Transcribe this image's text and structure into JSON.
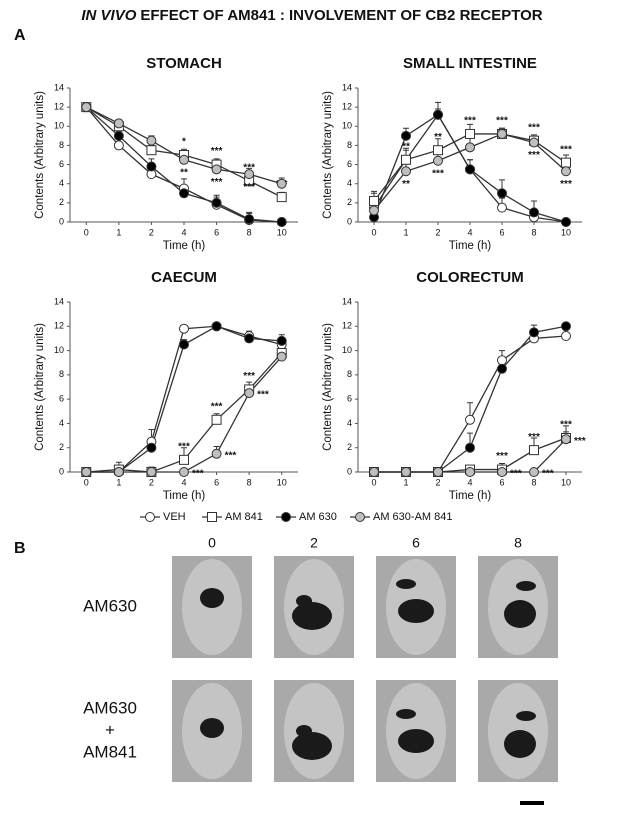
{
  "figure_title": {
    "italic": "IN VIVO",
    "rest": "EFFECT OF AM841 : INVOLVEMENT OF CB2 RECEPTOR"
  },
  "panel_labels": [
    "A",
    "B"
  ],
  "chart_data": [
    {
      "type": "line",
      "title": "STOMACH",
      "xlabel": "Time (h)",
      "ylabel": "Contents (Arbitrary units)",
      "categories": [
        "0",
        "1",
        "2",
        "4",
        "6",
        "8",
        "10"
      ],
      "ylim": [
        0,
        14
      ],
      "yticks": [
        0,
        2,
        4,
        6,
        8,
        10,
        12,
        14
      ],
      "series": [
        {
          "name": "VEH",
          "color": "#ffffff",
          "marker": "circle",
          "values": [
            12,
            8,
            5,
            3.5,
            1.8,
            0.2,
            0
          ],
          "errors": [
            0.2,
            0.3,
            0.4,
            1,
            0.8,
            0.8,
            0.1
          ]
        },
        {
          "name": "AM 841",
          "color": "#ffffff",
          "marker": "square",
          "values": [
            12,
            10,
            7.5,
            7,
            6,
            4.3,
            2.6
          ],
          "errors": [
            0.2,
            0.3,
            0.5,
            0.6,
            0.6,
            0.5,
            0.5
          ],
          "significance": [
            null,
            null,
            null,
            "*",
            "***",
            "***",
            "***"
          ],
          "label_side": "above"
        },
        {
          "name": "AM 630",
          "color": "#000000",
          "marker": "circle",
          "values": [
            12,
            9,
            5.8,
            3,
            2,
            0.3,
            0
          ],
          "errors": [
            0.2,
            0.5,
            0.8,
            0.5,
            0.8,
            0.6,
            0.1
          ]
        },
        {
          "name": "AM 630-AM 841",
          "color": "#bfbfbf",
          "marker": "circle",
          "values": [
            12,
            10.3,
            8.5,
            6.5,
            5.5,
            5,
            4
          ],
          "errors": [
            0.2,
            0.4,
            0.5,
            0.6,
            0.5,
            0.6,
            0.6
          ],
          "significance": [
            null,
            null,
            null,
            "**",
            "***",
            "***",
            null
          ],
          "label_side": "below"
        }
      ]
    },
    {
      "type": "line",
      "title": "SMALL INTESTINE",
      "xlabel": "Time (h)",
      "ylabel": "Contents (Arbitrary units)",
      "categories": [
        "0",
        "1",
        "2",
        "4",
        "6",
        "8",
        "10"
      ],
      "ylim": [
        0,
        14
      ],
      "yticks": [
        0,
        2,
        4,
        6,
        8,
        10,
        12,
        14
      ],
      "series": [
        {
          "name": "VEH",
          "color": "#ffffff",
          "marker": "circle",
          "values": [
            1.5,
            6.5,
            11.2,
            5.5,
            1.5,
            0.5,
            0
          ],
          "errors": [
            1.5,
            1,
            1.3,
            1,
            1,
            0.5,
            0.1
          ]
        },
        {
          "name": "AM 841",
          "color": "#ffffff",
          "marker": "square",
          "values": [
            2.2,
            6.5,
            7.5,
            9.2,
            9.2,
            8.5,
            6.2
          ],
          "errors": [
            1,
            1.2,
            1.2,
            1,
            0.6,
            0.6,
            0.8
          ],
          "significance": [
            null,
            "**",
            "**",
            "***",
            "***",
            "***",
            "***"
          ],
          "label_side": "above"
        },
        {
          "name": "AM 630",
          "color": "#000000",
          "marker": "circle",
          "values": [
            0.5,
            9,
            11.2,
            5.5,
            3,
            1,
            0
          ],
          "errors": [
            0.5,
            0.8,
            0.6,
            1,
            1.4,
            1.2,
            0.1
          ]
        },
        {
          "name": "AM 630-AM 841",
          "color": "#bfbfbf",
          "marker": "circle",
          "values": [
            1.2,
            5.3,
            6.4,
            7.8,
            9.2,
            8.3,
            5.3
          ],
          "errors": [
            0.8,
            0.8,
            0.8,
            1,
            0.6,
            0.6,
            0.6
          ],
          "significance": [
            null,
            "**",
            "***",
            null,
            null,
            "***",
            "***"
          ],
          "label_side": "below"
        }
      ]
    },
    {
      "type": "line",
      "title": "CAECUM",
      "xlabel": "Time (h)",
      "ylabel": "Contents (Arbitrary units)",
      "categories": [
        "0",
        "1",
        "2",
        "4",
        "6",
        "8",
        "10"
      ],
      "ylim": [
        0,
        14
      ],
      "yticks": [
        0,
        2,
        4,
        6,
        8,
        10,
        12,
        14
      ],
      "series": [
        {
          "name": "VEH",
          "color": "#ffffff",
          "marker": "circle",
          "values": [
            0,
            0,
            2.5,
            11.8,
            12,
            11.2,
            10.5
          ],
          "errors": [
            0.1,
            0.1,
            1,
            0.2,
            0.2,
            0.4,
            0.4
          ]
        },
        {
          "name": "AM 841",
          "color": "#ffffff",
          "marker": "square",
          "values": [
            0,
            0.2,
            0,
            1,
            4.3,
            6.8,
            9.8
          ],
          "errors": [
            0.1,
            0.6,
            0.4,
            1,
            0.5,
            0.6,
            0.4
          ],
          "significance": [
            null,
            null,
            null,
            "***",
            "***",
            "***",
            null
          ],
          "label_side": "above"
        },
        {
          "name": "AM 630",
          "color": "#000000",
          "marker": "circle",
          "values": [
            0,
            0,
            2,
            10.5,
            12,
            11,
            10.8
          ],
          "errors": [
            0.1,
            0.1,
            0.6,
            0.4,
            0.2,
            0.3,
            0.5
          ]
        },
        {
          "name": "AM 630-AM 841",
          "color": "#bfbfbf",
          "marker": "circle",
          "values": [
            0,
            0,
            0,
            0,
            1.5,
            6.5,
            9.5
          ],
          "errors": [
            0.1,
            0.1,
            0.1,
            0.1,
            0.6,
            0.6,
            0.4
          ],
          "significance": [
            null,
            null,
            null,
            "***",
            "***",
            "***",
            null
          ],
          "label_side": "right"
        }
      ]
    },
    {
      "type": "line",
      "title": "COLORECTUM",
      "xlabel": "Time (h)",
      "ylabel": "Contents (Arbitrary units)",
      "categories": [
        "0",
        "1",
        "2",
        "4",
        "6",
        "8",
        "10"
      ],
      "ylim": [
        0,
        14
      ],
      "yticks": [
        0,
        2,
        4,
        6,
        8,
        10,
        12,
        14
      ],
      "series": [
        {
          "name": "VEH",
          "color": "#ffffff",
          "marker": "circle",
          "values": [
            0,
            0,
            0,
            4.3,
            9.2,
            11,
            11.2
          ],
          "errors": [
            0.1,
            0.1,
            0.1,
            1.4,
            0.8,
            0.4,
            0.3
          ]
        },
        {
          "name": "AM 841",
          "color": "#ffffff",
          "marker": "square",
          "values": [
            0,
            0,
            0,
            0.2,
            0.2,
            1.8,
            2.8
          ],
          "errors": [
            0.1,
            0.1,
            0.1,
            0.2,
            0.5,
            1,
            1
          ],
          "significance": [
            null,
            null,
            null,
            null,
            "***",
            "***",
            "***"
          ],
          "label_side": "above"
        },
        {
          "name": "AM 630",
          "color": "#000000",
          "marker": "circle",
          "values": [
            0,
            0,
            0,
            2,
            8.5,
            11.5,
            12
          ],
          "errors": [
            0.1,
            0.1,
            0.1,
            1.2,
            0.6,
            0.6,
            0.3
          ]
        },
        {
          "name": "AM 630-AM 841",
          "color": "#bfbfbf",
          "marker": "circle",
          "values": [
            0,
            0,
            0,
            0,
            0,
            0,
            2.7
          ],
          "errors": [
            0.1,
            0.1,
            0.1,
            0.1,
            0.1,
            0.1,
            0.6
          ],
          "significance": [
            null,
            null,
            null,
            null,
            "***",
            "***",
            "***"
          ],
          "label_side": "right"
        }
      ]
    }
  ],
  "panel_b": {
    "columns": [
      "0",
      "2",
      "6",
      "8"
    ],
    "rows": [
      [
        "AM630"
      ],
      [
        "AM630",
        "+",
        "AM841"
      ]
    ]
  }
}
